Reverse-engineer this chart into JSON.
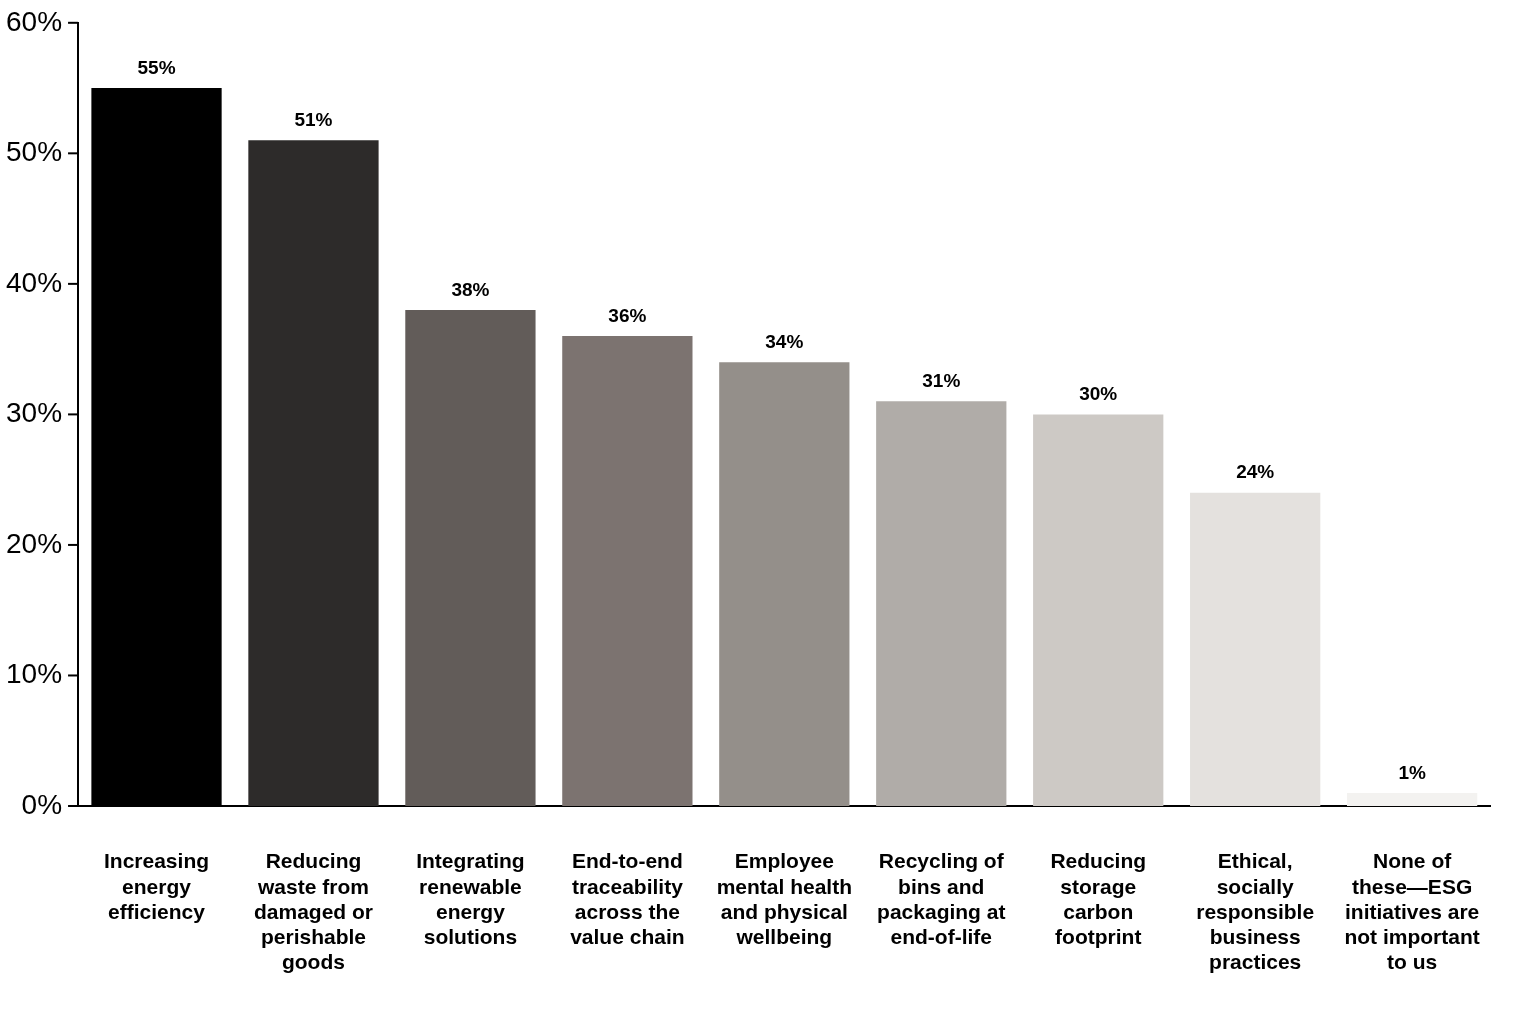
{
  "chart_data": {
    "type": "bar",
    "categories": [
      "Increasing energy efficiency",
      "Reducing waste from damaged or perishable goods",
      "Integrating renewable energy solutions",
      "End-to-end traceability across the value chain",
      "Employee mental health and physical wellbeing",
      "Recycling of bins and packaging at end-of-life",
      "Reducing storage carbon footprint",
      "Ethical, socially responsible business practices",
      "None of these—ESG initiatives are not important to us"
    ],
    "values": [
      55,
      51,
      38,
      36,
      34,
      31,
      30,
      24,
      1
    ],
    "colors": [
      "#000000",
      "#2d2b2a",
      "#625c59",
      "#7c7370",
      "#948f8a",
      "#b0aca8",
      "#cdc9c5",
      "#e4e1de",
      "#f3f2f0"
    ],
    "value_labels": [
      "55%",
      "51%",
      "38%",
      "36%",
      "34%",
      "31%",
      "30%",
      "24%",
      "1%"
    ],
    "ylim": [
      0,
      60
    ],
    "yticks": [
      {
        "value": 0,
        "label": "0%"
      },
      {
        "value": 10,
        "label": "10%"
      },
      {
        "value": 20,
        "label": "20%"
      },
      {
        "value": 30,
        "label": "30%"
      },
      {
        "value": 40,
        "label": "40%"
      },
      {
        "value": 50,
        "label": "50%"
      },
      {
        "value": 60,
        "label": "60%"
      }
    ],
    "grid": false,
    "legend": false
  }
}
